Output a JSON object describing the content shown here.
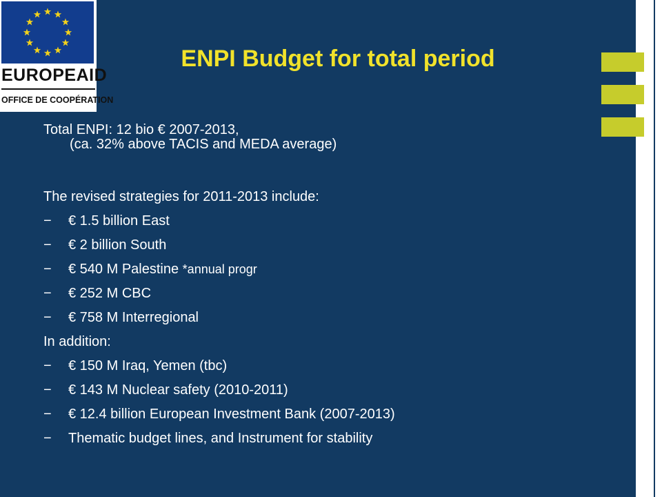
{
  "logo": {
    "name": "EUROPEAID",
    "subtitle": "OFFICE DE COOPÉRATION"
  },
  "title": "ENPI Budget for total period",
  "intro": {
    "line1": "Total ENPI: 12 bio € 2007-2013,",
    "line2": "(ca. 32% above TACIS and MEDA average)"
  },
  "strategies": {
    "heading": "The revised strategies for 2011-2013 include:",
    "items": [
      {
        "text": "€ 1.5 billion East"
      },
      {
        "text": "€ 2 billion South"
      },
      {
        "text": "€ 540 M Palestine",
        "note": "*annual progr"
      },
      {
        "text": "€ 252 M CBC"
      },
      {
        "text": "€ 758 M Interregional"
      }
    ]
  },
  "addition": {
    "heading": "In addition:",
    "items": [
      "€ 150 M Iraq, Yemen (tbc)",
      "€ 143 M Nuclear safety (2010-2011)",
      "€ 12.4 billion European Investment Bank (2007-2013)",
      "Thematic budget lines, and Instrument for stability"
    ]
  },
  "bullet_symbol": "−",
  "colors": {
    "background": "#123a62",
    "title": "#f1e22b",
    "accent_bars": "#c6cc2c",
    "text": "#ffffff"
  }
}
